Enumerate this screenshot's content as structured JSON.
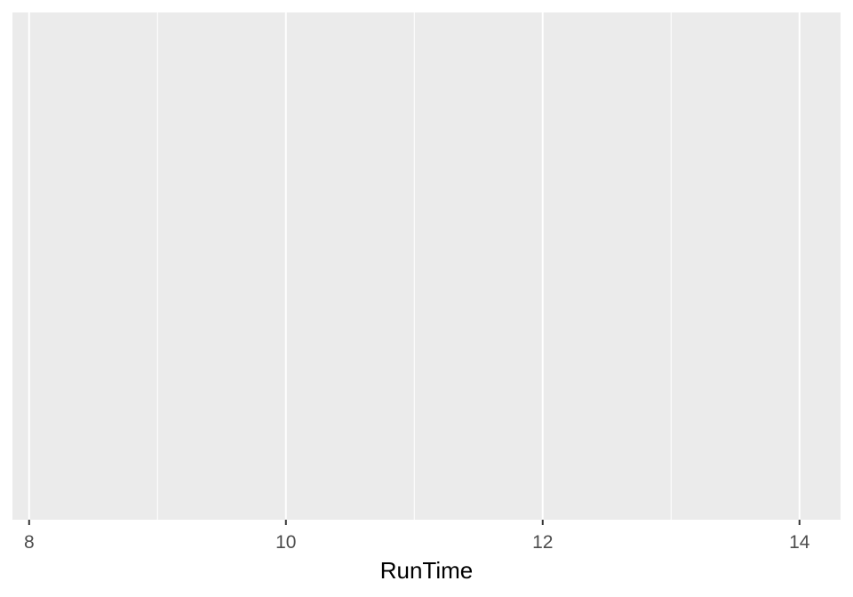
{
  "chart_data": {
    "type": "scatter",
    "title": "",
    "xlabel": "RunTime",
    "ylabel": "",
    "xlim": [
      7.87,
      14.32
    ],
    "xticks": [
      8,
      10,
      12,
      14
    ],
    "xminor": [
      9,
      11,
      13
    ],
    "ygrid": false,
    "grid": true,
    "series": [],
    "background": "#ebebeb",
    "grid_color": "#ffffff",
    "axis_text_color": "#4d4d4d",
    "axis_title_color": "#000000"
  }
}
